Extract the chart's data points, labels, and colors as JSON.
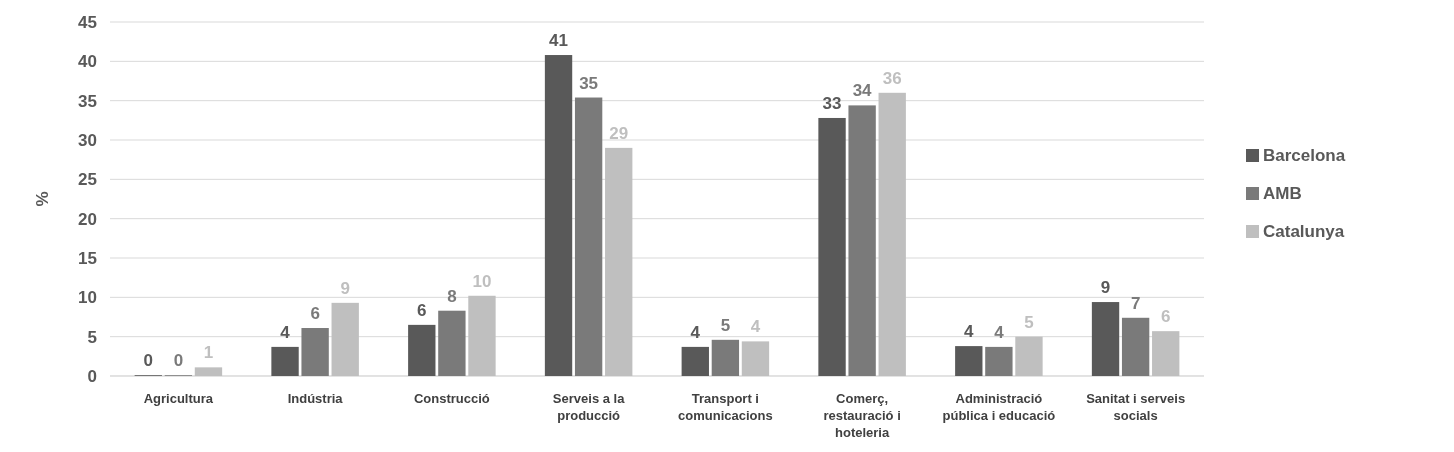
{
  "chart_data": {
    "type": "bar",
    "ylabel": "%",
    "categories": [
      "Agricultura",
      "Indústria",
      "Construcció",
      "Serveis a la producció",
      "Transport i comunicacions",
      "Comerç, restauració i hoteleria",
      "Administració pública i educació",
      "Sanitat i serveis socials"
    ],
    "series": [
      {
        "name": "Barcelona",
        "color": "#595959",
        "values": [
          0.1,
          3.7,
          6.5,
          40.8,
          3.7,
          32.8,
          3.8,
          9.4
        ],
        "value_labels": [
          "0",
          "4",
          "6",
          "41",
          "4",
          "33",
          "4",
          "9"
        ]
      },
      {
        "name": "AMB",
        "color": "#7a7a7a",
        "values": [
          0.1,
          6.1,
          8.3,
          35.4,
          4.6,
          34.4,
          3.7,
          7.4
        ],
        "value_labels": [
          "0",
          "6",
          "8",
          "35",
          "5",
          "34",
          "4",
          "7"
        ]
      },
      {
        "name": "Catalunya",
        "color": "#bfbfbf",
        "values": [
          1.1,
          9.3,
          10.2,
          29.0,
          4.4,
          36.0,
          5.0,
          5.7
        ],
        "value_labels": [
          "1",
          "9",
          "10",
          "29",
          "4",
          "36",
          "5",
          "6"
        ]
      }
    ],
    "ylim": [
      0,
      45
    ],
    "yticks": [
      0,
      5,
      10,
      15,
      20,
      25,
      30,
      35,
      40,
      45
    ],
    "grid": "y",
    "legend": "right"
  }
}
